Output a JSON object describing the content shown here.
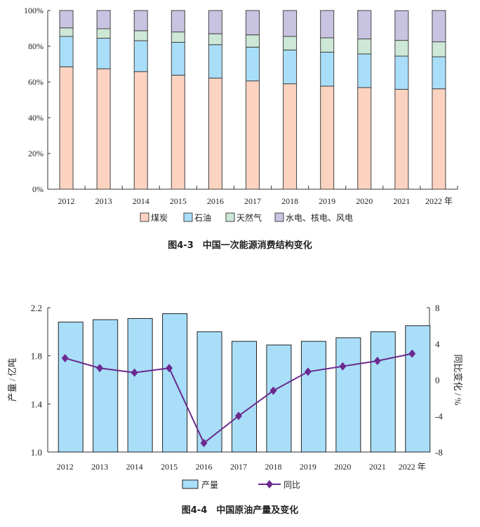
{
  "chart_data": [
    {
      "type": "bar",
      "stacked": true,
      "title": "图4-3　中国一次能源消费结构变化",
      "categories": [
        "2012",
        "2013",
        "2014",
        "2015",
        "2016",
        "2017",
        "2018",
        "2019",
        "2020",
        "2021",
        "2022 年"
      ],
      "ylim": [
        0,
        100
      ],
      "yticks": [
        "0%",
        "20%",
        "40%",
        "60%",
        "80%",
        "100%"
      ],
      "series": [
        {
          "name": "煤炭",
          "color": "#fbd3c0",
          "values": [
            68.5,
            67.4,
            65.8,
            63.8,
            62.2,
            60.6,
            59.0,
            57.7,
            56.9,
            55.9,
            56.2
          ]
        },
        {
          "name": "石油",
          "color": "#a9def9",
          "values": [
            17.0,
            17.1,
            17.3,
            18.4,
            18.7,
            18.9,
            18.9,
            19.0,
            18.8,
            18.6,
            17.9
          ]
        },
        {
          "name": "天然气",
          "color": "#cde8d6",
          "values": [
            4.8,
            5.3,
            5.6,
            5.8,
            6.1,
            6.9,
            7.6,
            8.0,
            8.4,
            8.8,
            8.4
          ]
        },
        {
          "name": "水电、核电、风电",
          "color": "#c9c3e2",
          "values": [
            9.7,
            10.2,
            11.3,
            12.0,
            13.0,
            13.6,
            14.5,
            15.3,
            15.9,
            16.6,
            17.5
          ]
        }
      ],
      "legend": "bottom"
    },
    {
      "type": "bar+line",
      "title": "图4-4　中国原油产量及变化",
      "categories": [
        "2012",
        "2013",
        "2014",
        "2015",
        "2016",
        "2017",
        "2018",
        "2019",
        "2020",
        "2021",
        "2022 年"
      ],
      "ylabel": "产量 / 亿吨",
      "y2label": "同比变化 / %",
      "ylim": [
        1.0,
        2.2
      ],
      "yticks": [
        "1.0",
        "1.4",
        "1.8",
        "2.2"
      ],
      "y2lim": [
        -8,
        8
      ],
      "y2ticks": [
        "-8",
        "-4",
        "0",
        "4",
        "8"
      ],
      "series": [
        {
          "name": "产量",
          "type": "bar",
          "color": "#a9def9",
          "values": [
            2.08,
            2.1,
            2.11,
            2.15,
            2.0,
            1.92,
            1.89,
            1.92,
            1.95,
            2.0,
            2.05
          ]
        },
        {
          "name": "同比",
          "type": "line",
          "color": "#6b2a8e",
          "values": [
            2.4,
            1.3,
            0.8,
            1.3,
            -7.0,
            -4.0,
            -1.2,
            0.9,
            1.5,
            2.1,
            2.9
          ]
        }
      ],
      "legend": "bottom"
    }
  ]
}
